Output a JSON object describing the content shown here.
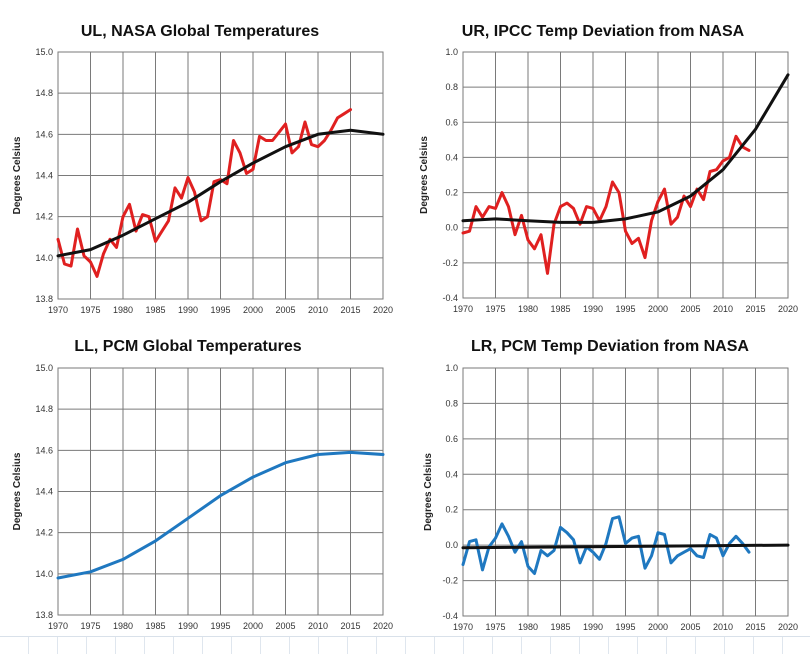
{
  "chart_data": [
    {
      "id": "ul",
      "type": "line",
      "title": "UL, NASA Global Temperatures",
      "ylabel": "Degrees Celsius",
      "xlim": [
        1970,
        2020
      ],
      "ylim": [
        13.8,
        15.0
      ],
      "x_ticks": [
        1970,
        1975,
        1980,
        1985,
        1990,
        1995,
        2000,
        2005,
        2010,
        2015,
        2020
      ],
      "y_ticks": [
        "13.8",
        "14.0",
        "14.2",
        "14.4",
        "14.6",
        "14.8",
        "15.0"
      ],
      "y_tick_values": [
        13.8,
        14.0,
        14.2,
        14.4,
        14.6,
        14.8,
        15.0
      ],
      "series": [
        {
          "color": "#e02020",
          "x": [
            1970,
            1971,
            1972,
            1973,
            1974,
            1975,
            1976,
            1977,
            1978,
            1979,
            1980,
            1981,
            1982,
            1983,
            1984,
            1985,
            1986,
            1987,
            1988,
            1989,
            1990,
            1991,
            1992,
            1993,
            1994,
            1995,
            1996,
            1997,
            1998,
            1999,
            2000,
            2001,
            2002,
            2003,
            2004,
            2005,
            2006,
            2007,
            2008,
            2009,
            2010,
            2011,
            2012,
            2013,
            2014,
            2015
          ],
          "y": [
            14.09,
            13.97,
            13.96,
            14.14,
            14.01,
            13.98,
            13.91,
            14.02,
            14.09,
            14.05,
            14.2,
            14.26,
            14.13,
            14.21,
            14.2,
            14.08,
            14.13,
            14.18,
            14.34,
            14.29,
            14.39,
            14.32,
            14.18,
            14.2,
            14.37,
            14.38,
            14.36,
            14.57,
            14.51,
            14.41,
            14.43,
            14.59,
            14.57,
            14.57,
            14.61,
            14.65,
            14.51,
            14.54,
            14.66,
            14.55,
            14.54,
            14.57,
            14.62,
            14.68,
            14.7,
            14.72
          ]
        },
        {
          "color": "#111111",
          "x": [
            1970,
            1975,
            1980,
            1985,
            1990,
            1995,
            2000,
            2005,
            2010,
            2015,
            2020
          ],
          "y": [
            14.01,
            14.04,
            14.11,
            14.19,
            14.27,
            14.37,
            14.46,
            14.54,
            14.6,
            14.62,
            14.6
          ]
        }
      ]
    },
    {
      "id": "ur",
      "type": "line",
      "title": "UR, IPCC Temp Deviation from NASA",
      "ylabel": "Degrees Celsius",
      "xlim": [
        1970,
        2020
      ],
      "ylim": [
        -0.4,
        1.0
      ],
      "x_ticks": [
        1970,
        1975,
        1980,
        1985,
        1990,
        1995,
        2000,
        2005,
        2010,
        2015,
        2020
      ],
      "y_ticks": [
        "-0.4",
        "-0.2",
        "0.0",
        "0.2",
        "0.4",
        "0.6",
        "0.8",
        "1.0"
      ],
      "y_tick_values": [
        -0.4,
        -0.2,
        0.0,
        0.2,
        0.4,
        0.6,
        0.8,
        1.0
      ],
      "series": [
        {
          "color": "#e02020",
          "x": [
            1970,
            1971,
            1972,
            1973,
            1974,
            1975,
            1976,
            1977,
            1978,
            1979,
            1980,
            1981,
            1982,
            1983,
            1984,
            1985,
            1986,
            1987,
            1988,
            1989,
            1990,
            1991,
            1992,
            1993,
            1994,
            1995,
            1996,
            1997,
            1998,
            1999,
            2000,
            2001,
            2002,
            2003,
            2004,
            2005,
            2006,
            2007,
            2008,
            2009,
            2010,
            2011,
            2012,
            2013,
            2014
          ],
          "y": [
            -0.03,
            -0.02,
            0.12,
            0.06,
            0.12,
            0.11,
            0.2,
            0.12,
            -0.04,
            0.07,
            -0.07,
            -0.12,
            -0.04,
            -0.26,
            0.02,
            0.12,
            0.14,
            0.11,
            0.02,
            0.12,
            0.11,
            0.04,
            0.12,
            0.26,
            0.2,
            -0.02,
            -0.09,
            -0.06,
            -0.17,
            0.04,
            0.15,
            0.22,
            0.02,
            0.06,
            0.18,
            0.12,
            0.22,
            0.16,
            0.32,
            0.33,
            0.38,
            0.4,
            0.52,
            0.46,
            0.44
          ]
        },
        {
          "color": "#111111",
          "x": [
            1970,
            1975,
            1980,
            1985,
            1990,
            1995,
            2000,
            2005,
            2010,
            2015,
            2020
          ],
          "y": [
            0.04,
            0.05,
            0.04,
            0.03,
            0.03,
            0.05,
            0.09,
            0.18,
            0.33,
            0.56,
            0.87
          ]
        }
      ]
    },
    {
      "id": "ll",
      "type": "line",
      "title": "LL, PCM Global Temperatures",
      "ylabel": "Degrees Celsius",
      "xlim": [
        1970,
        2020
      ],
      "ylim": [
        13.8,
        15.0
      ],
      "x_ticks": [
        1970,
        1975,
        1980,
        1985,
        1990,
        1995,
        2000,
        2005,
        2010,
        2015,
        2020
      ],
      "y_ticks": [
        "13.8",
        "14.0",
        "14.2",
        "14.4",
        "14.6",
        "14.8",
        "15.0"
      ],
      "y_tick_values": [
        13.8,
        14.0,
        14.2,
        14.4,
        14.6,
        14.8,
        15.0
      ],
      "series": [
        {
          "color": "#1f78c0",
          "x": [
            1970,
            1975,
            1980,
            1985,
            1990,
            1995,
            2000,
            2005,
            2010,
            2015,
            2020
          ],
          "y": [
            13.98,
            14.01,
            14.07,
            14.16,
            14.27,
            14.38,
            14.47,
            14.54,
            14.58,
            14.59,
            14.58
          ]
        }
      ]
    },
    {
      "id": "lr",
      "type": "line",
      "title": "LR, PCM Temp Deviation from NASA",
      "ylabel": "Degrees Celsius",
      "xlim": [
        1970,
        2020
      ],
      "ylim": [
        -0.4,
        1.0
      ],
      "x_ticks": [
        1970,
        1975,
        1980,
        1985,
        1990,
        1995,
        2000,
        2005,
        2010,
        2015,
        2020
      ],
      "y_ticks": [
        "-0.4",
        "-0.2",
        "0.0",
        "0.2",
        "0.4",
        "0.6",
        "0.8",
        "1.0"
      ],
      "y_tick_values": [
        -0.4,
        -0.2,
        0.0,
        0.2,
        0.4,
        0.6,
        0.8,
        1.0
      ],
      "series": [
        {
          "color": "#1f78c0",
          "x": [
            1970,
            1971,
            1972,
            1973,
            1974,
            1975,
            1976,
            1977,
            1978,
            1979,
            1980,
            1981,
            1982,
            1983,
            1984,
            1985,
            1986,
            1987,
            1988,
            1989,
            1990,
            1991,
            1992,
            1993,
            1994,
            1995,
            1996,
            1997,
            1998,
            1999,
            2000,
            2001,
            2002,
            2003,
            2004,
            2005,
            2006,
            2007,
            2008,
            2009,
            2010,
            2011,
            2012,
            2013,
            2014
          ],
          "y": [
            -0.11,
            0.02,
            0.03,
            -0.14,
            -0.01,
            0.04,
            0.12,
            0.05,
            -0.04,
            0.02,
            -0.12,
            -0.16,
            -0.03,
            -0.06,
            -0.03,
            0.1,
            0.07,
            0.03,
            -0.1,
            -0.01,
            -0.04,
            -0.08,
            0.01,
            0.15,
            0.16,
            0.01,
            0.04,
            0.05,
            -0.13,
            -0.06,
            0.07,
            0.06,
            -0.1,
            -0.06,
            -0.04,
            -0.02,
            -0.06,
            -0.07,
            0.06,
            0.04,
            -0.06,
            0.01,
            0.05,
            0.01,
            -0.04
          ]
        },
        {
          "color": "#111111",
          "x": [
            1970,
            2020
          ],
          "y": [
            -0.015,
            0.0
          ]
        }
      ]
    }
  ]
}
